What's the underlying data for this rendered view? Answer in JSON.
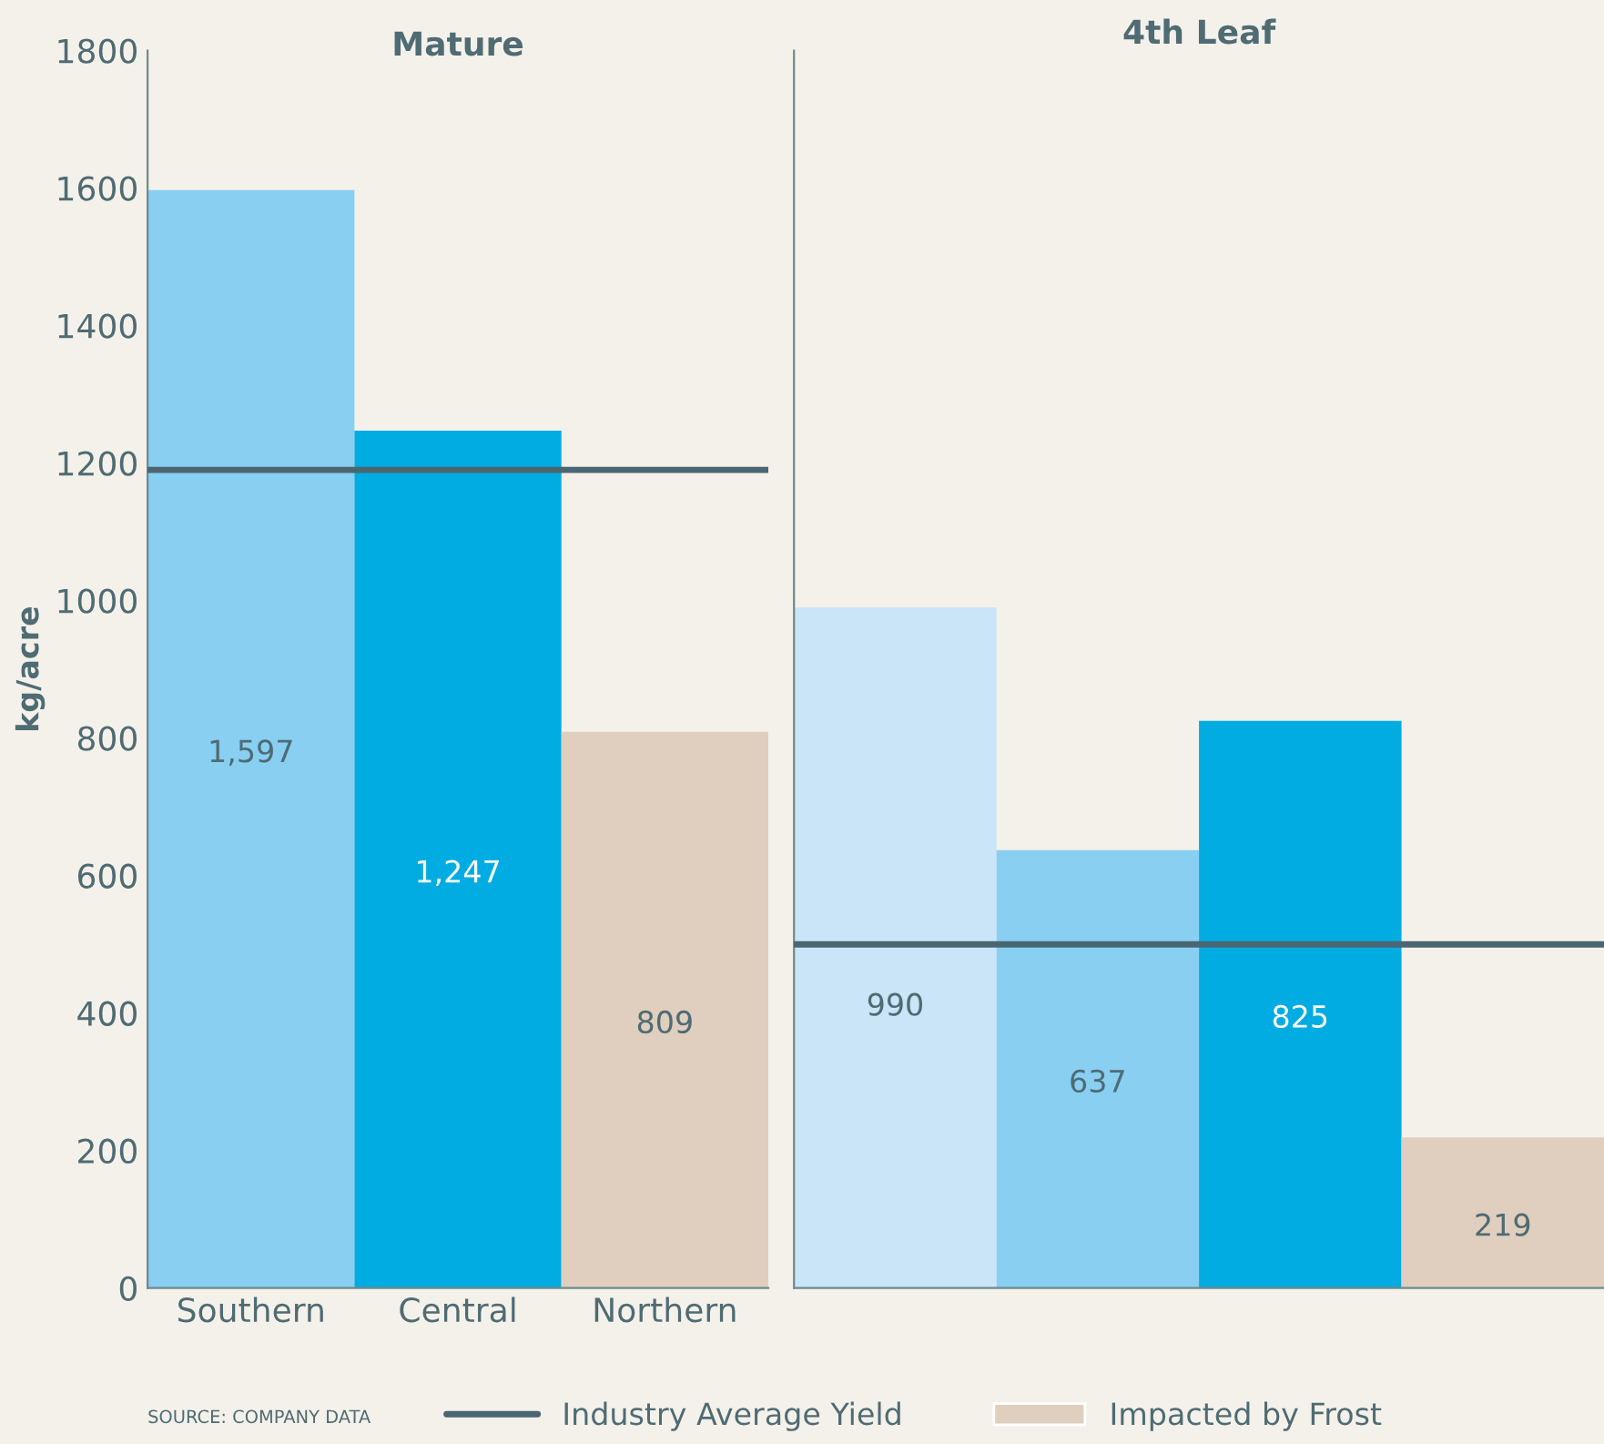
{
  "chart_data": [
    {
      "type": "bar",
      "title": "Mature",
      "ylabel": "kg/acre",
      "categories": [
        "Southern",
        "Central",
        "Northern"
      ],
      "stacked": true,
      "series": [
        {
          "colors": [
            "#88cff2",
            "#00ace2",
            "#88cff2"
          ],
          "values": [
            1597,
            1247,
            null
          ],
          "value_labels": [
            "1,597",
            "1,247",
            null
          ]
        },
        {
          "name": "Impacted by Frost",
          "color": "#e0cfbe",
          "values": [
            null,
            null,
            809
          ],
          "value_labels": [
            null,
            null,
            "809"
          ]
        }
      ],
      "ylim": [
        0,
        1800
      ],
      "yticks": [
        0,
        200,
        400,
        600,
        800,
        1000,
        1200,
        1400,
        1600,
        1800
      ],
      "ref_lines": [
        {
          "axis": "y",
          "value": 1190,
          "label": "Industry Average Yield",
          "color": "#4a6670"
        }
      ],
      "legend": "bottom",
      "annotations": [
        "SOURCE: COMPANY DATA"
      ]
    },
    {
      "type": "bar",
      "title": "4th Leaf",
      "categories": [
        null,
        null,
        null,
        null
      ],
      "stacked": true,
      "series": [
        {
          "colors": [
            "#c9e5f7",
            "#88cff2",
            "#00ace2",
            "#c9e5f7"
          ],
          "values": [
            990,
            637,
            825,
            null
          ],
          "value_labels": [
            "990",
            "637",
            "825",
            null
          ]
        },
        {
          "color": "#e0cfbe",
          "values": [
            null,
            null,
            null,
            219
          ],
          "value_labels": [
            null,
            null,
            null,
            "219"
          ]
        }
      ],
      "ylim": [
        0,
        1800
      ],
      "yticks": [
        0,
        200,
        400,
        600,
        800,
        1000,
        1200,
        1400,
        1600,
        1800
      ],
      "tick_labels": false,
      "ref_lines": [
        {
          "axis": "y",
          "value": 500,
          "color": "#4a6670"
        }
      ]
    }
  ]
}
